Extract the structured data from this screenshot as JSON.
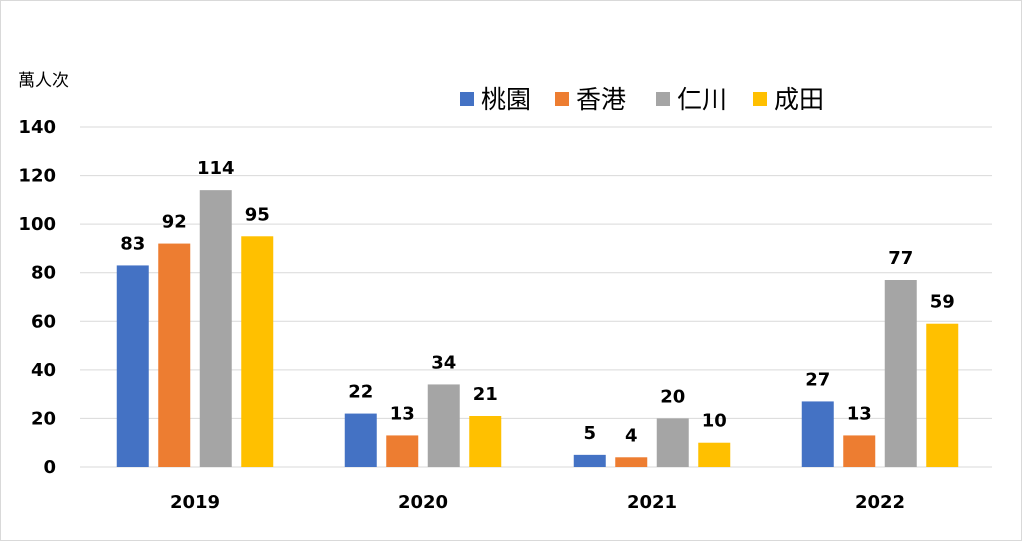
{
  "chart_data": {
    "type": "bar",
    "ylabel": "萬人次",
    "ylim": [
      0,
      140
    ],
    "yticks": [
      0,
      20,
      40,
      60,
      80,
      100,
      120,
      140
    ],
    "categories": [
      "2019",
      "2020",
      "2021",
      "2022"
    ],
    "series": [
      {
        "name": "桃園",
        "color": "#4472c4",
        "values": [
          83,
          22,
          5,
          27
        ]
      },
      {
        "name": "香港",
        "color": "#ed7d31",
        "values": [
          92,
          13,
          4,
          13
        ]
      },
      {
        "name": "仁川",
        "color": "#a5a5a5",
        "values": [
          114,
          34,
          20,
          77
        ]
      },
      {
        "name": "成田",
        "color": "#ffc000",
        "values": [
          95,
          21,
          10,
          59
        ]
      }
    ],
    "legend_position": "top-right",
    "grid": true,
    "data_labels": true
  }
}
